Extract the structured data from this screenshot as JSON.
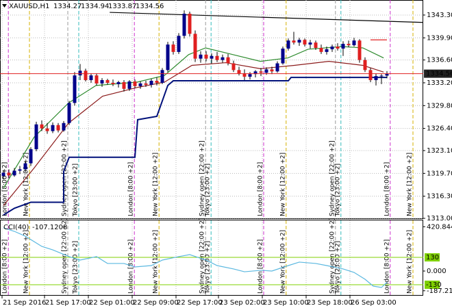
{
  "chart_data": {
    "type": "candlestick",
    "title": "XAUUSD,H1",
    "colors": {
      "up": "#00008b",
      "down": "#e02020",
      "wick": "#000000",
      "price_line": "#e02020",
      "grid": "#b8b8b8"
    },
    "ylim": [
      1313.0,
      1345.54
    ],
    "yticks": [
      {
        "value": 1343.3,
        "label": "1343.30"
      },
      {
        "value": 1339.9,
        "label": "1339.90"
      },
      {
        "value": 1336.6,
        "label": "1336.60"
      },
      {
        "value": 1333.2,
        "label": "1333.20"
      },
      {
        "value": 1329.8,
        "label": "1329.80"
      },
      {
        "value": 1326.4,
        "label": "1326.40"
      },
      {
        "value": 1323.1,
        "label": "1323.10"
      },
      {
        "value": 1319.7,
        "label": "1319.70"
      },
      {
        "value": 1316.3,
        "label": "1316.30"
      },
      {
        "value": 1313.0,
        "label": "1313.00"
      }
    ],
    "grid": true,
    "candles": [
      [
        1319.3,
        1320.2,
        1318.8,
        1319.8
      ],
      [
        1319.8,
        1320.3,
        1319.0,
        1319.4
      ],
      [
        1319.4,
        1320.5,
        1319.2,
        1320.1
      ],
      [
        1320.1,
        1320.8,
        1319.6,
        1320.3
      ],
      [
        1320.3,
        1321.5,
        1319.9,
        1321.2
      ],
      [
        1321.2,
        1323.6,
        1320.8,
        1323.3
      ],
      [
        1323.3,
        1327.4,
        1323.0,
        1327.0
      ],
      [
        1327.0,
        1327.6,
        1326.0,
        1326.4
      ],
      [
        1326.4,
        1327.2,
        1325.6,
        1326.0
      ],
      [
        1326.0,
        1327.3,
        1325.7,
        1326.9
      ],
      [
        1326.9,
        1327.2,
        1325.8,
        1326.1
      ],
      [
        1326.1,
        1327.5,
        1325.9,
        1327.2
      ],
      [
        1327.2,
        1330.5,
        1326.9,
        1330.2
      ],
      [
        1330.2,
        1334.8,
        1329.8,
        1334.3
      ],
      [
        1334.3,
        1336.0,
        1333.6,
        1335.0
      ],
      [
        1335.0,
        1335.3,
        1333.4,
        1333.6
      ],
      [
        1333.6,
        1334.6,
        1333.2,
        1334.3
      ],
      [
        1334.3,
        1334.6,
        1332.8,
        1333.1
      ],
      [
        1333.1,
        1333.9,
        1332.6,
        1333.6
      ],
      [
        1333.6,
        1333.8,
        1332.9,
        1333.2
      ],
      [
        1333.2,
        1333.7,
        1332.7,
        1333.0
      ],
      [
        1333.0,
        1333.5,
        1332.5,
        1333.3
      ],
      [
        1333.3,
        1333.6,
        1331.9,
        1332.3
      ],
      [
        1332.3,
        1333.6,
        1332.0,
        1333.4
      ],
      [
        1333.4,
        1333.7,
        1332.4,
        1332.7
      ],
      [
        1332.7,
        1333.4,
        1332.3,
        1333.1
      ],
      [
        1333.1,
        1333.5,
        1332.6,
        1332.9
      ],
      [
        1332.9,
        1333.8,
        1332.5,
        1333.5
      ],
      [
        1333.5,
        1334.0,
        1332.8,
        1333.2
      ],
      [
        1333.2,
        1335.4,
        1333.0,
        1335.1
      ],
      [
        1335.1,
        1339.3,
        1334.8,
        1338.9
      ],
      [
        1338.9,
        1339.4,
        1337.4,
        1337.8
      ],
      [
        1337.8,
        1340.6,
        1337.5,
        1340.2
      ],
      [
        1340.2,
        1344.0,
        1339.8,
        1343.5
      ],
      [
        1343.5,
        1343.8,
        1340.1,
        1340.5
      ],
      [
        1340.5,
        1341.0,
        1336.3,
        1336.8
      ],
      [
        1336.8,
        1337.9,
        1336.2,
        1337.4
      ],
      [
        1337.4,
        1337.9,
        1336.4,
        1336.8
      ],
      [
        1336.8,
        1337.6,
        1336.1,
        1337.2
      ],
      [
        1337.2,
        1337.8,
        1336.3,
        1336.6
      ],
      [
        1336.6,
        1337.4,
        1336.2,
        1337.0
      ],
      [
        1337.0,
        1337.5,
        1335.8,
        1336.1
      ],
      [
        1336.1,
        1336.5,
        1334.8,
        1335.1
      ],
      [
        1335.1,
        1335.6,
        1334.3,
        1334.6
      ],
      [
        1334.6,
        1335.2,
        1333.6,
        1334.1
      ],
      [
        1334.1,
        1334.8,
        1333.7,
        1334.5
      ],
      [
        1334.5,
        1335.1,
        1334.0,
        1334.9
      ],
      [
        1334.9,
        1335.4,
        1334.2,
        1334.7
      ],
      [
        1334.7,
        1335.5,
        1334.4,
        1335.2
      ],
      [
        1335.2,
        1335.6,
        1334.5,
        1334.9
      ],
      [
        1334.9,
        1336.4,
        1334.7,
        1336.1
      ],
      [
        1336.1,
        1338.6,
        1335.9,
        1338.3
      ],
      [
        1338.3,
        1339.8,
        1338.0,
        1339.5
      ],
      [
        1339.5,
        1340.8,
        1338.9,
        1339.2
      ],
      [
        1339.2,
        1339.9,
        1338.7,
        1339.6
      ],
      [
        1339.6,
        1339.8,
        1338.6,
        1338.9
      ],
      [
        1338.9,
        1339.6,
        1338.3,
        1339.2
      ],
      [
        1339.2,
        1339.5,
        1338.1,
        1338.4
      ],
      [
        1338.4,
        1338.9,
        1337.5,
        1337.8
      ],
      [
        1337.8,
        1338.6,
        1337.4,
        1338.2
      ],
      [
        1338.2,
        1338.9,
        1337.8,
        1338.6
      ],
      [
        1338.6,
        1339.1,
        1338.0,
        1338.3
      ],
      [
        1338.3,
        1339.4,
        1337.2,
        1339.0
      ],
      [
        1339.0,
        1339.5,
        1338.5,
        1338.8
      ],
      [
        1338.8,
        1339.9,
        1338.6,
        1339.5
      ],
      [
        1339.5,
        1339.7,
        1336.2,
        1336.6
      ],
      [
        1336.6,
        1337.0,
        1334.8,
        1335.1
      ],
      [
        1335.1,
        1335.4,
        1333.3,
        1333.6
      ],
      [
        1333.6,
        1334.6,
        1332.8,
        1334.2
      ],
      [
        1334.2,
        1334.5,
        1333.0,
        1334.27
      ],
      [
        1334.27,
        1334.94,
        1333.87,
        1334.56
      ]
    ],
    "overlays": [
      {
        "color": "#2e8b2e",
        "x": [
          0,
          5.6,
          11.9,
          16.9,
          24.4,
          29.4,
          33.8,
          36.9,
          41.9,
          46.9,
          51.9,
          55.6,
          61.9,
          65.6,
          69.4
        ],
        "values": [
          1317.5,
          1325.1,
          1330.2,
          1332.8,
          1333.3,
          1334.3,
          1337.4,
          1338.4,
          1337.4,
          1336.4,
          1336.9,
          1338.2,
          1338.6,
          1338.4,
          1336.9
        ]
      },
      {
        "color": "#8b1a1a",
        "x": [
          0,
          5.6,
          11.9,
          18.1,
          24.4,
          29.4,
          34.4,
          40.6,
          46.9,
          53.1,
          59.4,
          65.6,
          69.4
        ],
        "values": [
          1314.9,
          1320.5,
          1327.2,
          1331.2,
          1332.5,
          1333.3,
          1335.8,
          1336.2,
          1335.3,
          1335.8,
          1336.4,
          1335.8,
          1334.8
        ]
      },
      {
        "color": "#00107a",
        "x": [
          0,
          2,
          5,
          11,
          11,
          12,
          24,
          24.5,
          28,
          30,
          31,
          52,
          52.5,
          70
        ],
        "values": [
          1313.5,
          1314.5,
          1315.4,
          1315.4,
          1320.0,
          1322.1,
          1322.1,
          1327.7,
          1328.2,
          1332.8,
          1333.5,
          1333.5,
          1334.0,
          1334.0
        ]
      },
      {
        "color": "#000000",
        "x": [
          19.4,
          76.6
        ],
        "values": [
          1343.7,
          1342.2
        ]
      },
      {
        "color": "#e02020",
        "x": [
          67,
          70
        ],
        "values": [
          1339.6,
          1339.6
        ]
      }
    ],
    "time_labels": [
      {
        "x": 0,
        "label": "21 Sep 2016"
      },
      {
        "x": 7.75,
        "label": "21 Sep 17:00"
      },
      {
        "x": 15.75,
        "label": "22 Sep 01:00"
      },
      {
        "x": 23.75,
        "label": "22 Sep 09:00"
      },
      {
        "x": 31.75,
        "label": "22 Sep 17:00"
      },
      {
        "x": 39.5,
        "label": "23 Sep 02:00"
      },
      {
        "x": 47.5,
        "label": "23 Sep 10:00"
      },
      {
        "x": 55.5,
        "label": "23 Sep 18:00"
      },
      {
        "x": 63.5,
        "label": "26 Sep 03:00"
      }
    ],
    "sessions": [
      {
        "x": 0.9,
        "label": "London [8:00 +2]",
        "color": "#cc33cc"
      },
      {
        "x": 4.75,
        "label": "New York [12:00 +2]",
        "color": "#d4b000"
      },
      {
        "x": 11.75,
        "label": "Sydney open [22:00 +2]",
        "color": "#999999"
      },
      {
        "x": 13.75,
        "label": "Tokyo [23:00 +2]",
        "color": "#33bbbb"
      },
      {
        "x": 23.9,
        "label": "London [8:00 +2]",
        "color": "#cc33cc"
      },
      {
        "x": 28.4,
        "label": "New York [12:00 +2]",
        "color": "#d4b000"
      },
      {
        "x": 36.9,
        "label": "Sydney open [22:00 +2]",
        "color": "#999999"
      },
      {
        "x": 37.9,
        "label": "Tokyo [23:00 +2]",
        "color": "#33bbbb"
      },
      {
        "x": 47.5,
        "label": "London [8:00 +2]",
        "color": "#cc33cc"
      },
      {
        "x": 51.6,
        "label": "New York [12:00 +2]",
        "color": "#d4b000"
      },
      {
        "x": 60.6,
        "label": "Sydney open [22:00 +2]",
        "color": "#999999"
      },
      {
        "x": 61.6,
        "label": "Tokyo [23:00 +2]",
        "color": "#33bbbb"
      },
      {
        "x": 70.6,
        "label": "London [8:00 +2]",
        "color": "#cc33cc"
      },
      {
        "x": 74.75,
        "label": "New York [12:00 +2]",
        "color": "#d4b000"
      }
    ],
    "cci": {
      "type": "line",
      "name": "CCI(40)",
      "color": "#5bb8e0",
      "x": [
        0,
        2,
        4,
        7,
        9,
        12,
        14,
        17,
        19,
        22,
        24,
        27,
        29,
        32,
        34,
        37,
        39,
        42,
        44,
        47,
        49,
        52,
        54,
        57,
        59,
        62,
        64,
        66,
        67.5,
        69,
        70
      ],
      "values": [
        410,
        377,
        331,
        234,
        201,
        137,
        104,
        137,
        72,
        72,
        39,
        52,
        104,
        137,
        156,
        104,
        52,
        20,
        -7,
        7,
        0,
        52,
        85,
        72,
        52,
        20,
        -13,
        -78,
        -143,
        -156,
        -107.1208
      ],
      "ylim": [
        -234,
        481
      ],
      "yticks": [
        420.8444,
        {
          "value": 0,
          "label": "0.000"
        },
        -187.2166
      ],
      "levels": [
        130,
        -130
      ],
      "level_color": "#7fd000"
    }
  }
}
